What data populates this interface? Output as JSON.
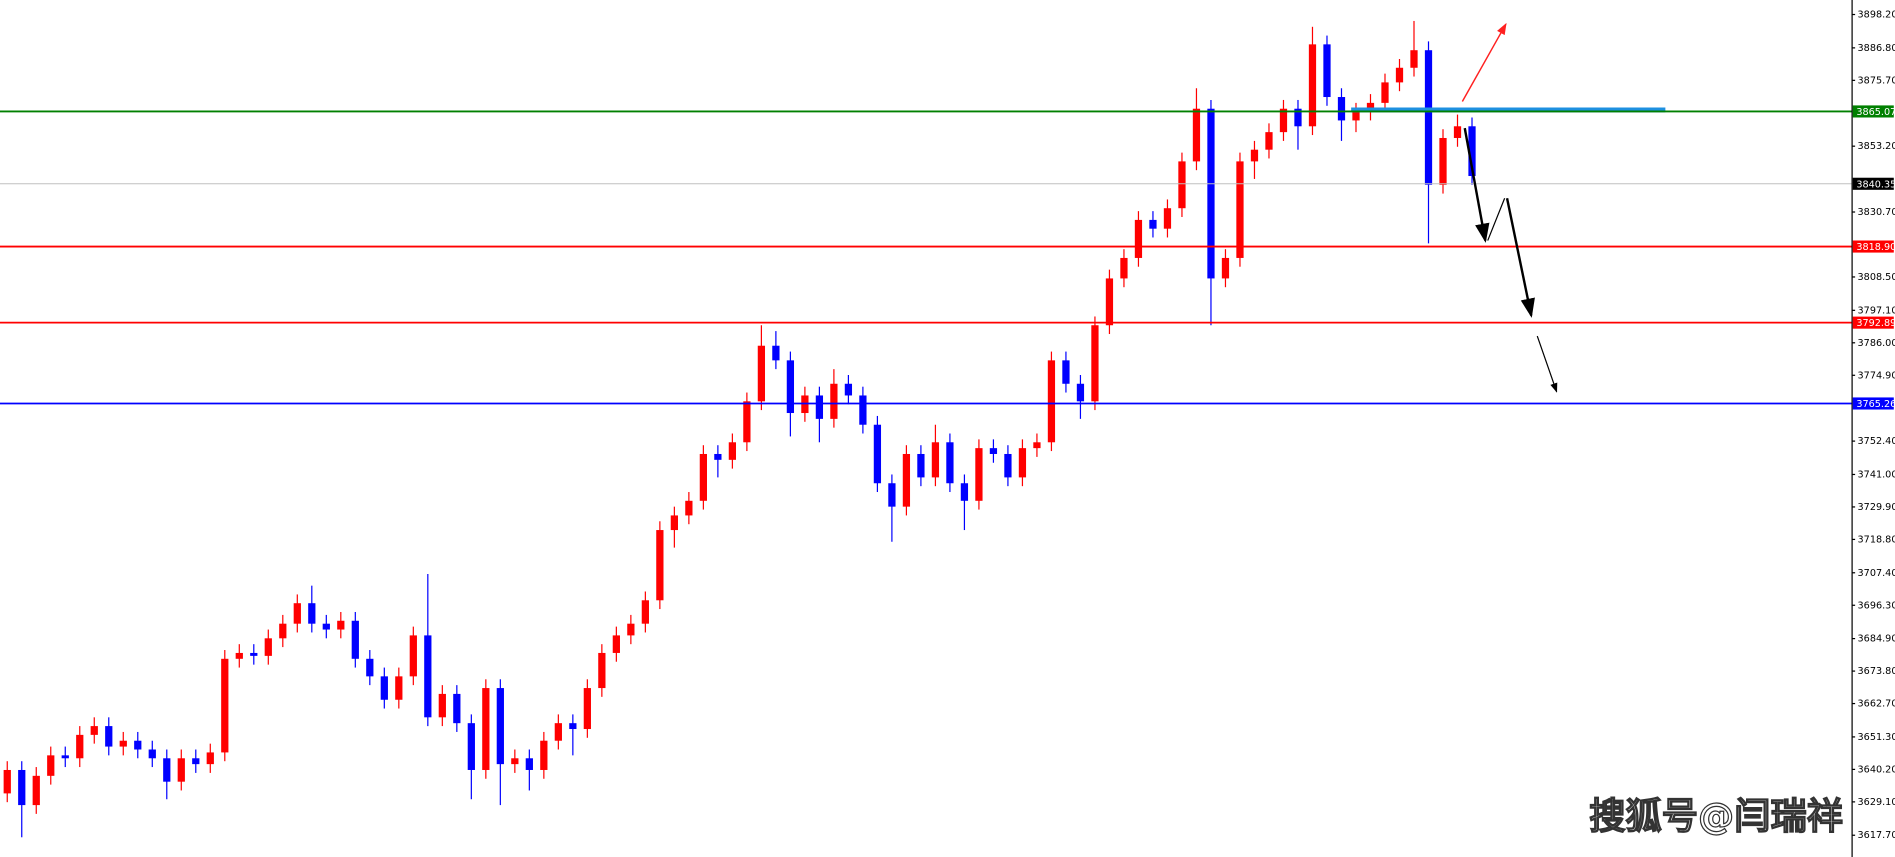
{
  "chart_data": {
    "type": "candlestick",
    "up_color": "#ff0000",
    "down_color": "#0000ff",
    "ylim": [
      3610.26,
      3903.16
    ],
    "yticks": [
      {
        "value": 3898.2,
        "label": "3898.20"
      },
      {
        "value": 3886.8,
        "label": "3886.80"
      },
      {
        "value": 3875.7,
        "label": "3875.70"
      },
      {
        "value": 3853.2,
        "label": "3853.20"
      },
      {
        "value": 3830.7,
        "label": "3830.70"
      },
      {
        "value": 3808.5,
        "label": "3808.50"
      },
      {
        "value": 3797.1,
        "label": "3797.10"
      },
      {
        "value": 3786,
        "label": "3786.00"
      },
      {
        "value": 3774.9,
        "label": "3774.90"
      },
      {
        "value": 3752.4,
        "label": "3752.40"
      },
      {
        "value": 3741,
        "label": "3741.00"
      },
      {
        "value": 3729.9,
        "label": "3729.90"
      },
      {
        "value": 3718.8,
        "label": "3718.80"
      },
      {
        "value": 3707.4,
        "label": "3707.40"
      },
      {
        "value": 3696.3,
        "label": "3696.30"
      },
      {
        "value": 3684.9,
        "label": "3684.90"
      },
      {
        "value": 3673.8,
        "label": "3673.80"
      },
      {
        "value": 3662.7,
        "label": "3662.70"
      },
      {
        "value": 3651.3,
        "label": "3651.30"
      },
      {
        "value": 3640.2,
        "label": "3640.20"
      },
      {
        "value": 3629.1,
        "label": "3629.10"
      },
      {
        "value": 3617.7,
        "label": "3617.70"
      }
    ],
    "open": [
      3632,
      3640,
      3628,
      3638,
      3645,
      3644,
      3652,
      3655,
      3648,
      3650,
      3647,
      3644,
      3636,
      3644,
      3642,
      3646,
      3678,
      3680,
      3679,
      3685,
      3690,
      3697,
      3690,
      3688,
      3691,
      3678,
      3672,
      3664,
      3672,
      3686,
      3658,
      3666,
      3656,
      3640,
      3668,
      3642,
      3644,
      3640,
      3650,
      3656,
      3654,
      3668,
      3680,
      3686,
      3690,
      3698,
      3722,
      3727,
      3732,
      3748,
      3746,
      3752,
      3766,
      3785,
      3780,
      3762,
      3768,
      3760,
      3772,
      3768,
      3758,
      3738,
      3730,
      3748,
      3740,
      3752,
      3738,
      3732,
      3750,
      3748,
      3740,
      3750,
      3752,
      3780,
      3772,
      3766,
      3792,
      3808,
      3815,
      3828,
      3825,
      3832,
      3848,
      3866,
      3808,
      3815,
      3848,
      3852,
      3858,
      3866,
      3860,
      3888,
      3870,
      3862,
      3865,
      3868,
      3875,
      3880,
      3886,
      3840,
      3856,
      3860
    ],
    "high": [
      3643,
      3643,
      3641,
      3648,
      3648,
      3655,
      3658,
      3658,
      3653,
      3653,
      3650,
      3647,
      3647,
      3647,
      3649,
      3681,
      3683,
      3683,
      3688,
      3693,
      3700,
      3703,
      3693,
      3694,
      3694,
      3681,
      3675,
      3675,
      3689,
      3707,
      3669,
      3669,
      3659,
      3671,
      3671,
      3647,
      3647,
      3653,
      3659,
      3659,
      3671,
      3683,
      3689,
      3693,
      3701,
      3725,
      3730,
      3735,
      3751,
      3751,
      3755,
      3769,
      3792,
      3790,
      3783,
      3771,
      3771,
      3777,
      3775,
      3771,
      3761,
      3741,
      3751,
      3751,
      3758,
      3755,
      3741,
      3753,
      3753,
      3751,
      3753,
      3755,
      3783,
      3783,
      3775,
      3795,
      3811,
      3818,
      3831,
      3831,
      3835,
      3851,
      3873,
      3869,
      3818,
      3851,
      3855,
      3861,
      3869,
      3869,
      3894,
      3891,
      3873,
      3868,
      3871,
      3878,
      3883,
      3896,
      3889,
      3859,
      3864,
      3863
    ],
    "low": [
      3629,
      3617,
      3625,
      3635,
      3641,
      3641,
      3649,
      3645,
      3645,
      3644,
      3641,
      3630,
      3633,
      3639,
      3639,
      3643,
      3675,
      3676,
      3676,
      3682,
      3687,
      3687,
      3685,
      3685,
      3675,
      3669,
      3661,
      3661,
      3669,
      3655,
      3655,
      3653,
      3630,
      3637,
      3628,
      3639,
      3633,
      3637,
      3647,
      3645,
      3651,
      3665,
      3677,
      3683,
      3687,
      3695,
      3716,
      3724,
      3729,
      3740,
      3743,
      3749,
      3763,
      3777,
      3754,
      3759,
      3752,
      3757,
      3765,
      3755,
      3735,
      3718,
      3727,
      3737,
      3737,
      3735,
      3722,
      3729,
      3745,
      3737,
      3737,
      3747,
      3749,
      3769,
      3760,
      3763,
      3789,
      3805,
      3812,
      3822,
      3822,
      3829,
      3845,
      3792,
      3805,
      3812,
      3842,
      3849,
      3855,
      3852,
      3857,
      3867,
      3855,
      3858,
      3862,
      3865,
      3872,
      3877,
      3820,
      3837,
      3853,
      3840
    ],
    "close": [
      3640,
      3628,
      3638,
      3645,
      3644,
      3652,
      3655,
      3648,
      3650,
      3647,
      3644,
      3636,
      3644,
      3642,
      3646,
      3678,
      3680,
      3679,
      3685,
      3690,
      3697,
      3690,
      3688,
      3691,
      3678,
      3672,
      3664,
      3672,
      3686,
      3658,
      3666,
      3656,
      3640,
      3668,
      3642,
      3644,
      3640,
      3650,
      3656,
      3654,
      3668,
      3680,
      3686,
      3690,
      3698,
      3722,
      3727,
      3732,
      3748,
      3746,
      3752,
      3766,
      3785,
      3780,
      3762,
      3768,
      3760,
      3772,
      3768,
      3758,
      3738,
      3730,
      3748,
      3740,
      3752,
      3738,
      3732,
      3750,
      3748,
      3740,
      3750,
      3752,
      3780,
      3772,
      3766,
      3792,
      3808,
      3815,
      3828,
      3825,
      3832,
      3848,
      3866,
      3808,
      3815,
      3848,
      3852,
      3858,
      3866,
      3860,
      3888,
      3870,
      3862,
      3865,
      3868,
      3875,
      3880,
      3886,
      3840,
      3856,
      3860,
      3843
    ],
    "levels": [
      {
        "value": 3865.07,
        "label": "3865.07",
        "color": "#008000"
      },
      {
        "value": 3840.35,
        "label": "3840.35",
        "color": "#c0c0c0",
        "label_color": "#000000"
      },
      {
        "value": 3818.9,
        "label": "3818.90",
        "color": "#ff0000"
      },
      {
        "value": 3792.89,
        "label": "3792.89",
        "color": "#ff0000"
      },
      {
        "value": 3765.26,
        "label": "3765.26",
        "color": "#0000ff"
      }
    ],
    "zone": {
      "value": 3865.6,
      "color": "#1e90e0"
    },
    "watermark": "搜狐号@闫瑞祥"
  }
}
